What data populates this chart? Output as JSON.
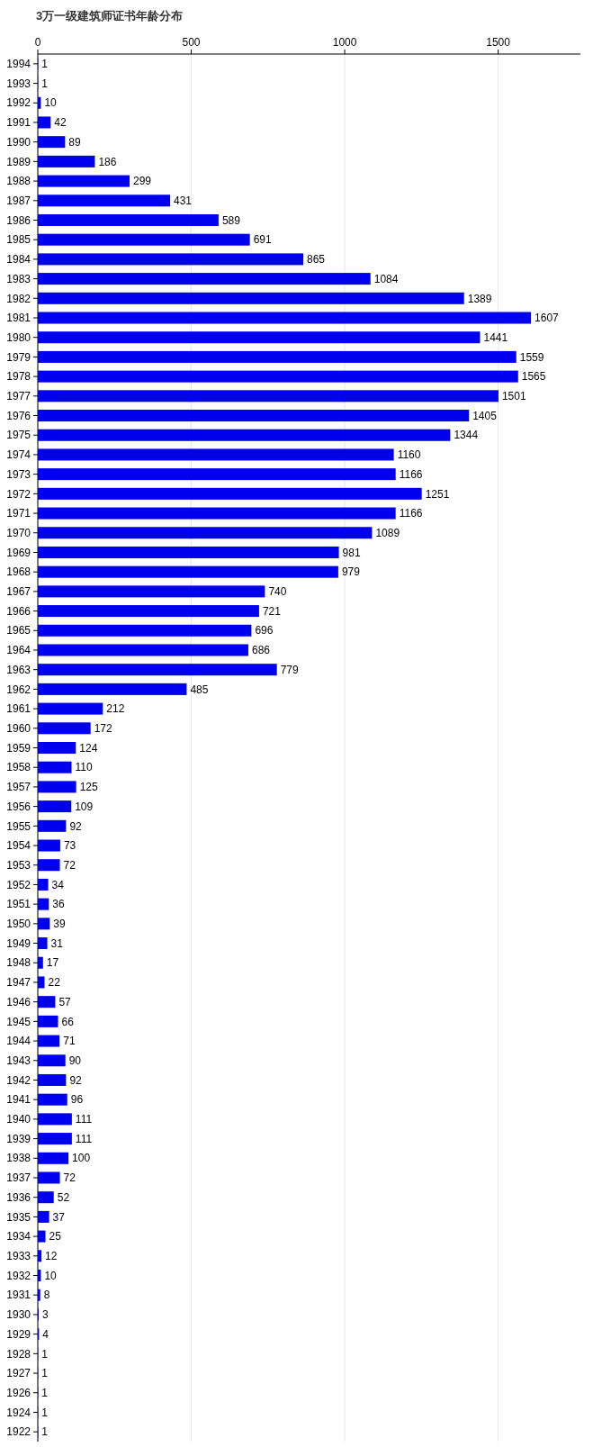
{
  "chart_data": {
    "type": "bar",
    "orientation": "horizontal",
    "title": "3万一级建筑师证书年龄分布",
    "categories": [
      "1994",
      "1993",
      "1992",
      "1991",
      "1990",
      "1989",
      "1988",
      "1987",
      "1986",
      "1985",
      "1984",
      "1983",
      "1982",
      "1981",
      "1980",
      "1979",
      "1978",
      "1977",
      "1976",
      "1975",
      "1974",
      "1973",
      "1972",
      "1971",
      "1970",
      "1969",
      "1968",
      "1967",
      "1966",
      "1965",
      "1964",
      "1963",
      "1962",
      "1961",
      "1960",
      "1959",
      "1958",
      "1957",
      "1956",
      "1955",
      "1954",
      "1953",
      "1952",
      "1951",
      "1950",
      "1949",
      "1948",
      "1947",
      "1946",
      "1945",
      "1944",
      "1943",
      "1942",
      "1941",
      "1940",
      "1939",
      "1938",
      "1937",
      "1936",
      "1935",
      "1934",
      "1933",
      "1932",
      "1931",
      "1930",
      "1929",
      "1928",
      "1927",
      "1926",
      "1924",
      "1922"
    ],
    "values": [
      1,
      1,
      10,
      42,
      89,
      186,
      299,
      431,
      589,
      691,
      865,
      1084,
      1389,
      1607,
      1441,
      1559,
      1565,
      1501,
      1405,
      1344,
      1160,
      1166,
      1251,
      1166,
      1089,
      981,
      979,
      740,
      721,
      696,
      686,
      779,
      485,
      212,
      172,
      124,
      110,
      125,
      109,
      92,
      73,
      72,
      34,
      36,
      39,
      31,
      17,
      22,
      57,
      66,
      71,
      90,
      92,
      96,
      111,
      111,
      100,
      72,
      52,
      37,
      25,
      12,
      10,
      8,
      3,
      4,
      1,
      1,
      1,
      1,
      1
    ],
    "color": "#0000ee",
    "xlim": [
      0,
      1768
    ],
    "xticks": [
      0,
      500,
      1000,
      1500
    ],
    "grid": "x",
    "data_labels": true
  }
}
